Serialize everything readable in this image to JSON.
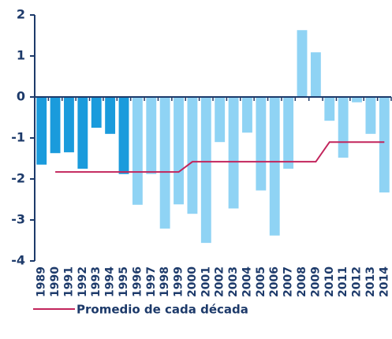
{
  "chart_data": {
    "type": "bar",
    "categories": [
      "1989",
      "1990",
      "1991",
      "1992",
      "1993",
      "1994",
      "1995",
      "1996",
      "1997",
      "1998",
      "1999",
      "2000",
      "2001",
      "2002",
      "2003",
      "2004",
      "2005",
      "2006",
      "2007",
      "2008",
      "2009",
      "2010",
      "2011",
      "2012",
      "2013",
      "2014"
    ],
    "values": [
      -1.65,
      -1.37,
      -1.35,
      -1.75,
      -0.75,
      -0.9,
      -1.88,
      -2.63,
      -1.88,
      -3.21,
      -2.62,
      -2.85,
      -3.56,
      -1.1,
      -2.72,
      -0.87,
      -2.28,
      -3.38,
      -1.75,
      1.63,
      1.09,
      -0.58,
      -1.48,
      -0.13,
      -0.9,
      -2.33
    ],
    "colors": [
      "#1a9bdc",
      "#1a9bdc",
      "#1a9bdc",
      "#1a9bdc",
      "#1a9bdc",
      "#1a9bdc",
      "#1a9bdc",
      "#8fd3f4",
      "#8fd3f4",
      "#8fd3f4",
      "#8fd3f4",
      "#8fd3f4",
      "#8fd3f4",
      "#8fd3f4",
      "#8fd3f4",
      "#8fd3f4",
      "#8fd3f4",
      "#8fd3f4",
      "#8fd3f4",
      "#8fd3f4",
      "#8fd3f4",
      "#8fd3f4",
      "#8fd3f4",
      "#8fd3f4",
      "#8fd3f4",
      "#8fd3f4"
    ],
    "series": [
      {
        "name": "Promedio de cada década",
        "color": "#c2255c",
        "values": [
          null,
          -1.83,
          -1.83,
          -1.83,
          -1.83,
          -1.83,
          -1.83,
          -1.83,
          -1.83,
          -1.83,
          -1.83,
          -1.58,
          -1.58,
          -1.58,
          -1.58,
          -1.58,
          -1.58,
          -1.58,
          -1.58,
          -1.58,
          -1.58,
          -1.1,
          -1.1,
          -1.1,
          -1.1,
          -1.1
        ]
      }
    ],
    "ylim": [
      -4,
      2
    ],
    "yticks": [
      2,
      1,
      0,
      -1,
      -2,
      -3,
      -4
    ],
    "grid": false,
    "legend": "bottom"
  }
}
